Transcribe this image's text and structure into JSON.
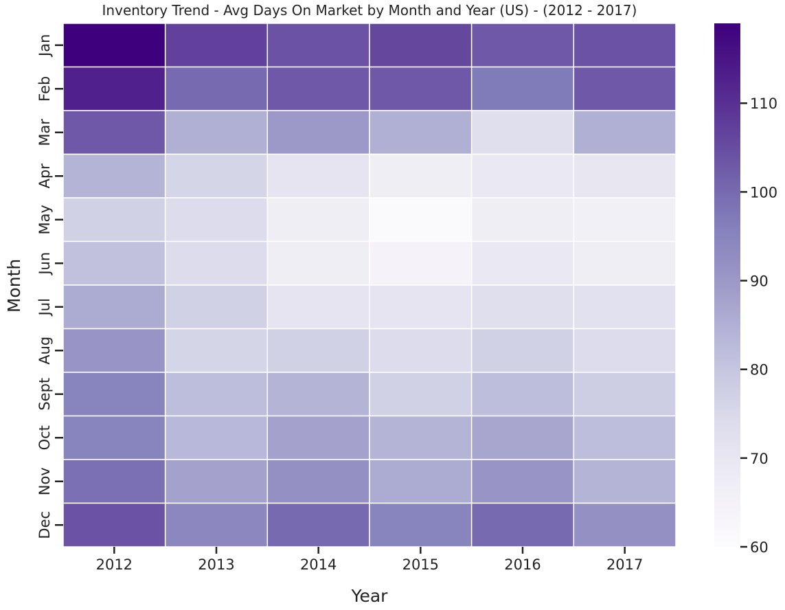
{
  "chart_data": {
    "type": "heatmap",
    "title": "Inventory Trend - Avg Days On Market by Month and Year (US) - (2012 - 2017)",
    "xlabel": "Year",
    "ylabel": "Month",
    "x_categories": [
      "2012",
      "2013",
      "2014",
      "2015",
      "2016",
      "2017"
    ],
    "y_categories": [
      "Jan",
      "Feb",
      "Mar",
      "Apr",
      "May",
      "Jun",
      "Jul",
      "Aug",
      "Sept",
      "Oct",
      "Nov",
      "Dec"
    ],
    "values": [
      [
        119,
        107,
        104,
        106,
        103,
        104
      ],
      [
        113,
        100,
        103,
        103,
        97,
        103
      ],
      [
        103,
        85,
        90,
        85,
        73,
        85
      ],
      [
        84,
        76,
        71,
        67,
        69,
        70
      ],
      [
        77,
        74,
        67,
        61,
        67,
        66
      ],
      [
        81,
        74,
        67,
        64,
        69,
        67
      ],
      [
        86,
        77,
        71,
        71,
        73,
        72
      ],
      [
        91,
        76,
        77,
        74,
        77,
        74
      ],
      [
        95,
        82,
        84,
        77,
        82,
        78
      ],
      [
        95,
        83,
        88,
        84,
        87,
        82
      ],
      [
        99,
        88,
        92,
        86,
        91,
        84
      ],
      [
        104,
        94,
        100,
        95,
        100,
        92
      ]
    ],
    "colorbar": {
      "ticks": [
        60,
        70,
        80,
        90,
        100,
        110
      ],
      "min": 60,
      "max": 119
    },
    "colormap": "Purples",
    "colors": {
      "low": "#fcfbfd",
      "high": "#3f007d"
    },
    "cell_borders": "white"
  }
}
